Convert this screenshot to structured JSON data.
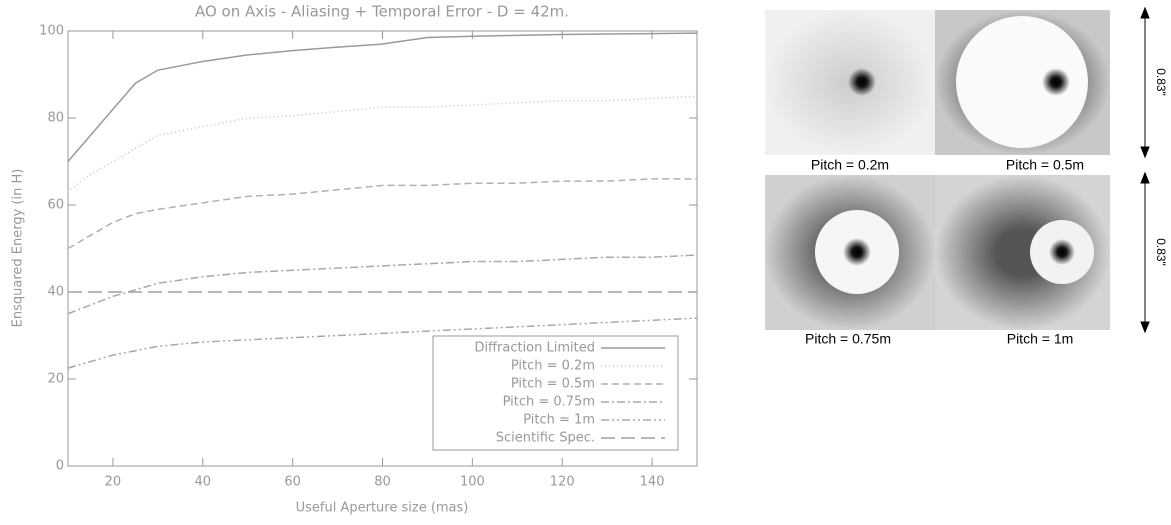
{
  "chart_data": {
    "type": "line",
    "title": "AO on Axis - Aliasing + Temporal Error - D = 42m.",
    "x_label": "Useful Aperture size (mas)",
    "y_label": "Ensquared Energy (in H)",
    "x": [
      10,
      15,
      20,
      25,
      30,
      40,
      50,
      60,
      70,
      80,
      90,
      100,
      110,
      120,
      130,
      140,
      150
    ],
    "xlim": [
      10,
      150
    ],
    "xticks": [
      20,
      40,
      60,
      80,
      100,
      120,
      140
    ],
    "ylim": [
      0,
      100
    ],
    "yticks": [
      0,
      20,
      40,
      60,
      80,
      100
    ],
    "legend": "lower right",
    "series": [
      {
        "name": "Diffraction Limited",
        "color": "#9a9a9a",
        "dash": "solid",
        "values": [
          70,
          76,
          82,
          88,
          91,
          93,
          94.5,
          95.5,
          96.3,
          97,
          98.5,
          98.8,
          99,
          99.2,
          99.3,
          99.4,
          99.5
        ]
      },
      {
        "name": "Pitch = 0.2m",
        "color": "#c4c4c4",
        "dash": "dotted",
        "values": [
          63,
          67,
          70,
          73,
          76,
          78,
          80,
          80.5,
          81.5,
          82.5,
          82.5,
          83,
          83.5,
          84,
          84,
          84.5,
          85
        ]
      },
      {
        "name": "Pitch = 0.5m",
        "color": "#b0b0b0",
        "dash": "dashed",
        "values": [
          50,
          53,
          56,
          58,
          59,
          60.5,
          62,
          62.5,
          63.5,
          64.5,
          64.5,
          65,
          65,
          65.5,
          65.5,
          66,
          66
        ]
      },
      {
        "name": "Pitch = 0.75m",
        "color": "#a8a8a8",
        "dash": "dash-dot",
        "values": [
          35,
          37,
          39,
          40.5,
          42,
          43.5,
          44.5,
          45,
          45.5,
          46,
          46.5,
          47,
          47,
          47.5,
          48,
          48,
          48.5
        ]
      },
      {
        "name": "Pitch = 1m",
        "color": "#a8a8a8",
        "dash": "dash-dot-dot",
        "values": [
          22.5,
          24,
          25.5,
          26.5,
          27.5,
          28.5,
          29,
          29.5,
          30,
          30.5,
          31,
          31.5,
          32,
          32.5,
          33,
          33.5,
          34
        ]
      },
      {
        "name": "Scientific Spec.",
        "color": "#a0a0a0",
        "dash": "long-dash",
        "values": [
          40,
          40,
          40,
          40,
          40,
          40,
          40,
          40,
          40,
          40,
          40,
          40,
          40,
          40,
          40,
          40,
          40
        ]
      }
    ]
  },
  "panels": [
    {
      "label": "Pitch = 0.2m"
    },
    {
      "label": "Pitch = 0.5m"
    },
    {
      "label": "Pitch = 0.75m"
    },
    {
      "label": "Pitch = 1m"
    }
  ],
  "scale_labels": [
    "0.83\"",
    "0.83\""
  ]
}
